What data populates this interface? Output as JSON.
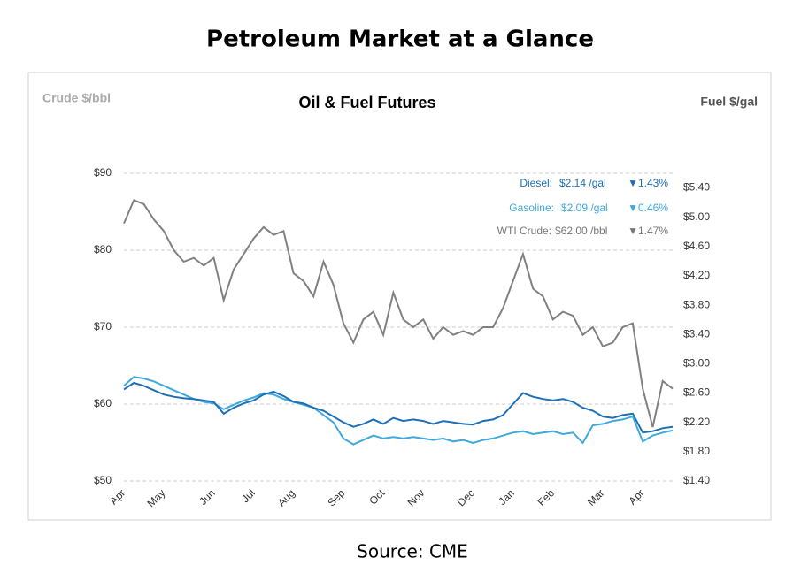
{
  "page_title": "Petroleum Market at a Glance",
  "source": "Source: CME",
  "chart_data": {
    "type": "line",
    "title": "Oil & Fuel Futures",
    "y_label": "Crude $/bbl",
    "y2_label": "Fuel $/gal",
    "categories": [
      "Apr",
      null,
      null,
      null,
      "May",
      null,
      null,
      null,
      null,
      "Jun",
      null,
      null,
      null,
      "Jul",
      null,
      null,
      null,
      "Aug",
      null,
      null,
      null,
      null,
      "Sep",
      null,
      null,
      null,
      "Oct",
      null,
      null,
      null,
      "Nov",
      null,
      null,
      null,
      null,
      "Dec",
      null,
      null,
      null,
      "Jan",
      null,
      null,
      null,
      "Feb",
      null,
      null,
      null,
      null,
      "Mar",
      null,
      null,
      null,
      "Apr",
      null,
      null,
      null
    ],
    "ylim": [
      50,
      90
    ],
    "yticks": [
      {
        "value": 50,
        "label": "$50"
      },
      {
        "value": 60,
        "label": "$60"
      },
      {
        "value": 70,
        "label": "$70"
      },
      {
        "value": 80,
        "label": "$80"
      },
      {
        "value": 90,
        "label": "$90"
      }
    ],
    "y2lim": [
      1.4,
      5.6
    ],
    "y2ticks": [
      {
        "value": 1.4,
        "label": "$1.40"
      },
      {
        "value": 1.8,
        "label": "$1.80"
      },
      {
        "value": 2.2,
        "label": "$2.20"
      },
      {
        "value": 2.6,
        "label": "$2.60"
      },
      {
        "value": 3.0,
        "label": "$3.00"
      },
      {
        "value": 3.4,
        "label": "$3.40"
      },
      {
        "value": 3.8,
        "label": "$3.80"
      },
      {
        "value": 4.2,
        "label": "$4.20"
      },
      {
        "value": 4.6,
        "label": "$4.60"
      },
      {
        "value": 5.0,
        "label": "$5.00"
      },
      {
        "value": 5.4,
        "label": "$5.40"
      }
    ],
    "grid": true,
    "series": [
      {
        "color": "#808080",
        "axis": "y",
        "values": [
          83.5,
          86.5,
          86,
          84,
          82.5,
          80,
          78.5,
          79,
          78,
          79,
          73.5,
          77.5,
          79.5,
          81.5,
          83,
          82,
          82.5,
          77,
          76,
          74,
          78.5,
          75.5,
          70.5,
          68,
          71,
          72,
          69,
          74.5,
          71,
          70,
          71,
          68.5,
          70,
          69,
          69.5,
          69,
          70,
          70,
          72.5,
          76,
          79.5,
          75,
          74,
          71,
          72,
          71.5,
          69,
          70,
          67.5,
          68,
          70,
          70.5,
          62,
          57,
          63,
          62
        ]
      },
      {
        "color": "#3fa9dc",
        "axis": "y2",
        "values": [
          2.7,
          2.82,
          2.8,
          2.76,
          2.7,
          2.64,
          2.58,
          2.52,
          2.48,
          2.46,
          2.38,
          2.44,
          2.5,
          2.54,
          2.6,
          2.58,
          2.52,
          2.48,
          2.44,
          2.4,
          2.3,
          2.2,
          1.98,
          1.9,
          1.96,
          2.02,
          1.98,
          2.0,
          1.98,
          2.0,
          1.98,
          1.96,
          1.98,
          1.94,
          1.96,
          1.92,
          1.96,
          1.98,
          2.02,
          2.06,
          2.08,
          2.04,
          2.06,
          2.08,
          2.04,
          2.06,
          1.92,
          2.16,
          2.18,
          2.22,
          2.24,
          2.28,
          1.94,
          2.02,
          2.06,
          2.09
        ]
      },
      {
        "color": "#1f6fb5",
        "axis": "y2",
        "values": [
          2.65,
          2.74,
          2.7,
          2.64,
          2.58,
          2.55,
          2.53,
          2.52,
          2.5,
          2.48,
          2.32,
          2.4,
          2.46,
          2.5,
          2.58,
          2.62,
          2.56,
          2.48,
          2.46,
          2.4,
          2.36,
          2.28,
          2.2,
          2.14,
          2.18,
          2.24,
          2.18,
          2.26,
          2.22,
          2.24,
          2.22,
          2.18,
          2.22,
          2.2,
          2.18,
          2.17,
          2.22,
          2.24,
          2.3,
          2.45,
          2.6,
          2.55,
          2.52,
          2.5,
          2.52,
          2.48,
          2.4,
          2.36,
          2.28,
          2.26,
          2.3,
          2.32,
          2.06,
          2.08,
          2.12,
          2.14
        ]
      }
    ],
    "annotations": [
      {
        "label": "Diesel:",
        "price": "$2.14 /gal",
        "change": "▼1.43%",
        "color": "#1f6fb5"
      },
      {
        "label": "Gasoline:",
        "price": "$2.09 /gal",
        "change": "▼0.46%",
        "color": "#3fa9dc"
      },
      {
        "label": "WTI Crude:",
        "price": "$62.00 /bbl",
        "change": "▼1.47%",
        "color": "#777777"
      }
    ]
  }
}
